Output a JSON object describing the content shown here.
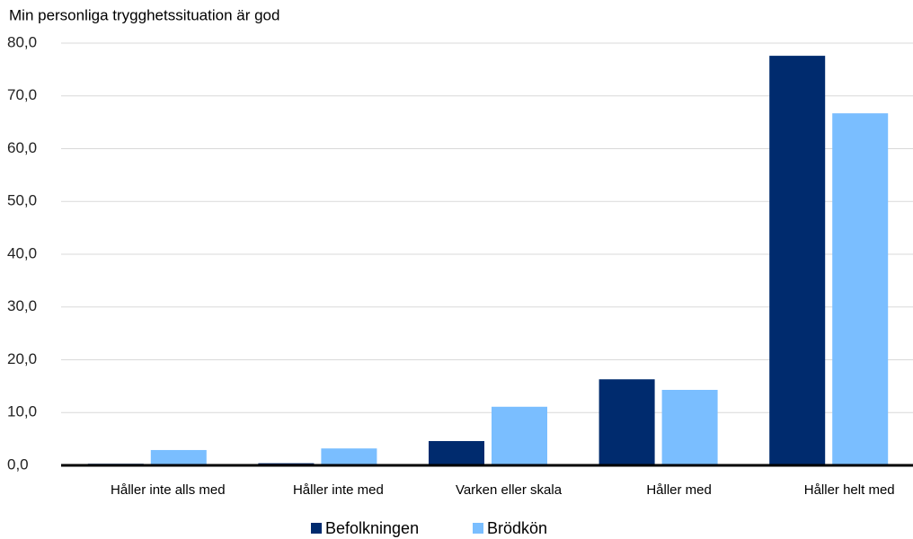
{
  "chart_data": {
    "type": "bar",
    "title": "Min personliga trygghetssituation är god",
    "categories": [
      "Håller inte alls med",
      "Håller inte med",
      "Varken eller skala",
      "Håller med",
      "Håller helt med"
    ],
    "series": [
      {
        "name": "Befolkningen",
        "color": "#002b6e",
        "values": [
          0.3,
          0.4,
          4.6,
          16.3,
          77.6
        ]
      },
      {
        "name": "Brödkön",
        "color": "#7abeff",
        "values": [
          2.9,
          3.2,
          11.1,
          14.3,
          66.7
        ]
      }
    ],
    "ylim": [
      0,
      80
    ],
    "yticks": [
      {
        "value": 0,
        "label": "0,0"
      },
      {
        "value": 10,
        "label": "10,0"
      },
      {
        "value": 20,
        "label": "20,0"
      },
      {
        "value": 30,
        "label": "30,0"
      },
      {
        "value": 40,
        "label": "40,0"
      },
      {
        "value": 50,
        "label": "50,0"
      },
      {
        "value": 60,
        "label": "60,0"
      },
      {
        "value": 70,
        "label": "70,0"
      },
      {
        "value": 80,
        "label": "80,0"
      }
    ],
    "grid": true,
    "legend": "bottom"
  }
}
